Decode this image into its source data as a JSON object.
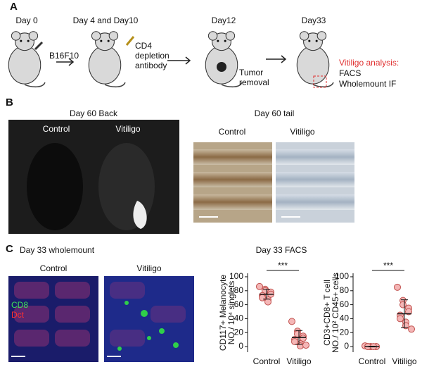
{
  "panel_a": {
    "label": "A",
    "day0": "Day 0",
    "day4": "Day 4 and Day10",
    "day12": "Day12",
    "day33": "Day33",
    "b16": "B16F10",
    "cd4": [
      "CD4",
      "depletion",
      "antibody"
    ],
    "tumor": [
      "Tumor",
      "removal"
    ],
    "analysis": "Vitiligo analysis:",
    "facs": "FACS",
    "wm": "Wholemount IF"
  },
  "panel_b": {
    "label": "B",
    "back_title": "Day 60 Back",
    "back_control": "Control",
    "back_vitiligo": "Vitiligo",
    "tail_title": "Day 60 tail",
    "tail_control": "Control",
    "tail_vitiligo": "Vitiligo"
  },
  "panel_c": {
    "label": "C",
    "wm_title": "Day 33 wholemount",
    "wm_control": "Control",
    "wm_vitiligo": "Vitiligo",
    "cd8": "CD8",
    "dct": "Dct",
    "facs_title": "Day 33 FACS"
  },
  "chart_data": [
    {
      "type": "strip",
      "ylabel": [
        "CD117+ Melanocyte",
        "NO./ 10⁴ singlets"
      ],
      "categories": [
        "Control",
        "Vitiligo"
      ],
      "values": [
        [
          86,
          82,
          80,
          78,
          75,
          73,
          70,
          67,
          64
        ],
        [
          36,
          22,
          18,
          15,
          12,
          10,
          7,
          4,
          1,
          2
        ]
      ],
      "means": [
        75,
        13
      ],
      "sd": [
        7,
        10
      ],
      "ylim": [
        -8,
        105
      ],
      "yticks": [
        0,
        20,
        40,
        60,
        80,
        100
      ],
      "annotation": "***",
      "color": "#f4b6b6",
      "edge": "#c0504d"
    },
    {
      "type": "strip",
      "ylabel": [
        "CD3+CD8+ T cell",
        "NO./ 10² CD45+ cells"
      ],
      "categories": [
        "Control",
        "Vitiligo"
      ],
      "values": [
        [
          1,
          0,
          0,
          0,
          0,
          0,
          0,
          0
        ],
        [
          85,
          66,
          60,
          55,
          50,
          45,
          40,
          35,
          30,
          25
        ]
      ],
      "means": [
        0,
        47
      ],
      "sd": [
        0.5,
        20
      ],
      "ylim": [
        -8,
        105
      ],
      "yticks": [
        0,
        20,
        40,
        60,
        80,
        100
      ],
      "annotation": "***",
      "color": "#f4b6b6",
      "edge": "#c0504d"
    }
  ]
}
